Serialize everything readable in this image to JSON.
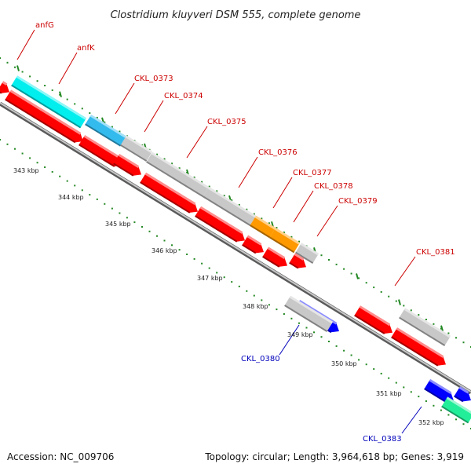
{
  "title": "Clostridium kluyveri DSM 555, complete genome",
  "footer": {
    "accession": "Accession: NC_009706",
    "stats": "Topology: circular; Length: 3,964,618 bp; Genes: 3,919"
  },
  "colors": {
    "forward_gene": "#ff0000",
    "reverse_gene": "#0000ff",
    "label_forward": "#cc0000",
    "label_reverse": "#0000bb",
    "ruler": "#228822",
    "backbone": "#8c8c8c"
  },
  "ruler_labels": [
    "343 kbp",
    "344 kbp",
    "345 kbp",
    "346 kbp",
    "347 kbp",
    "348 kbp",
    "349 kbp",
    "350 kbp",
    "351 kbp",
    "352 kbp"
  ],
  "gene_labels": [
    {
      "text": "anfG",
      "strand": "forward"
    },
    {
      "text": "anfK",
      "strand": "forward"
    },
    {
      "text": "CKL_0373",
      "strand": "forward"
    },
    {
      "text": "CKL_0374",
      "strand": "forward"
    },
    {
      "text": "CKL_0375",
      "strand": "forward"
    },
    {
      "text": "CKL_0376",
      "strand": "forward"
    },
    {
      "text": "CKL_0377",
      "strand": "forward"
    },
    {
      "text": "CKL_0378",
      "strand": "forward"
    },
    {
      "text": "CKL_0379",
      "strand": "forward"
    },
    {
      "text": "CKL_0381",
      "strand": "forward"
    },
    {
      "text": "CKL_0380",
      "strand": "reverse"
    },
    {
      "text": "CKL_0383",
      "strand": "reverse"
    }
  ]
}
